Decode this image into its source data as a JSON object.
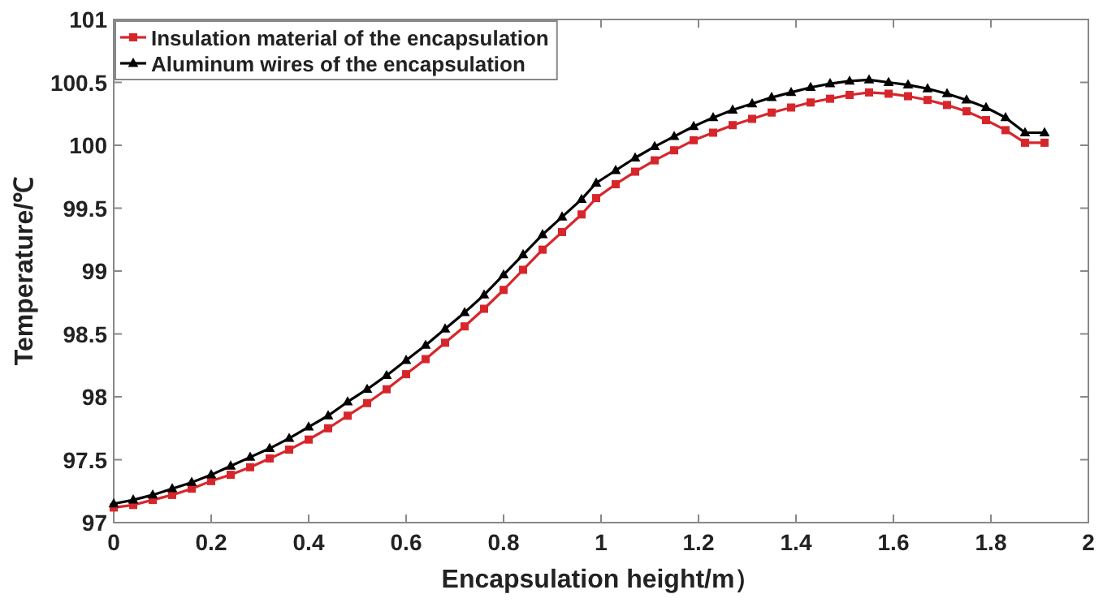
{
  "chart_data": {
    "type": "line",
    "xlabel": "Encapsulation height/m）",
    "ylabel": "Temperature/℃",
    "x": [
      0,
      0.04,
      0.08,
      0.12,
      0.16,
      0.2,
      0.24,
      0.28,
      0.32,
      0.36,
      0.4,
      0.44,
      0.48,
      0.52,
      0.56,
      0.6,
      0.64,
      0.68,
      0.72,
      0.76,
      0.8,
      0.84,
      0.88,
      0.92,
      0.96,
      0.99,
      1.03,
      1.07,
      1.11,
      1.15,
      1.19,
      1.23,
      1.27,
      1.31,
      1.35,
      1.39,
      1.43,
      1.47,
      1.51,
      1.55,
      1.59,
      1.63,
      1.67,
      1.71,
      1.75,
      1.79,
      1.83,
      1.87,
      1.91
    ],
    "series": [
      {
        "name": "Insulation material of the encapsulation",
        "color": "#d7262b",
        "marker": "square",
        "values": [
          97.12,
          97.14,
          97.18,
          97.22,
          97.27,
          97.33,
          97.38,
          97.44,
          97.51,
          97.58,
          97.66,
          97.75,
          97.85,
          97.95,
          98.06,
          98.18,
          98.3,
          98.43,
          98.56,
          98.7,
          98.85,
          99.01,
          99.17,
          99.31,
          99.45,
          99.58,
          99.69,
          99.79,
          99.88,
          99.96,
          100.04,
          100.1,
          100.16,
          100.21,
          100.26,
          100.3,
          100.34,
          100.37,
          100.4,
          100.42,
          100.41,
          100.39,
          100.36,
          100.32,
          100.27,
          100.2,
          100.12,
          100.02,
          100.02
        ]
      },
      {
        "name": "Aluminum wires of the encapsulation",
        "color": "#000000",
        "marker": "triangle",
        "values": [
          97.15,
          97.18,
          97.22,
          97.27,
          97.32,
          97.38,
          97.45,
          97.52,
          97.59,
          97.67,
          97.76,
          97.85,
          97.96,
          98.06,
          98.17,
          98.29,
          98.41,
          98.54,
          98.67,
          98.81,
          98.97,
          99.13,
          99.29,
          99.43,
          99.57,
          99.7,
          99.8,
          99.9,
          99.99,
          100.07,
          100.15,
          100.22,
          100.28,
          100.33,
          100.38,
          100.42,
          100.46,
          100.49,
          100.51,
          100.52,
          100.5,
          100.48,
          100.45,
          100.41,
          100.36,
          100.3,
          100.22,
          100.1,
          100.1
        ]
      }
    ],
    "xlim": [
      0,
      2
    ],
    "xticks": [
      0,
      0.2,
      0.4,
      0.6,
      0.8,
      1,
      1.2,
      1.4,
      1.6,
      1.8,
      2
    ],
    "ylim": [
      97,
      101
    ],
    "yticks": [
      97,
      97.5,
      98,
      98.5,
      99,
      99.5,
      100,
      100.5,
      101
    ],
    "grid": false,
    "legend": "top left"
  }
}
